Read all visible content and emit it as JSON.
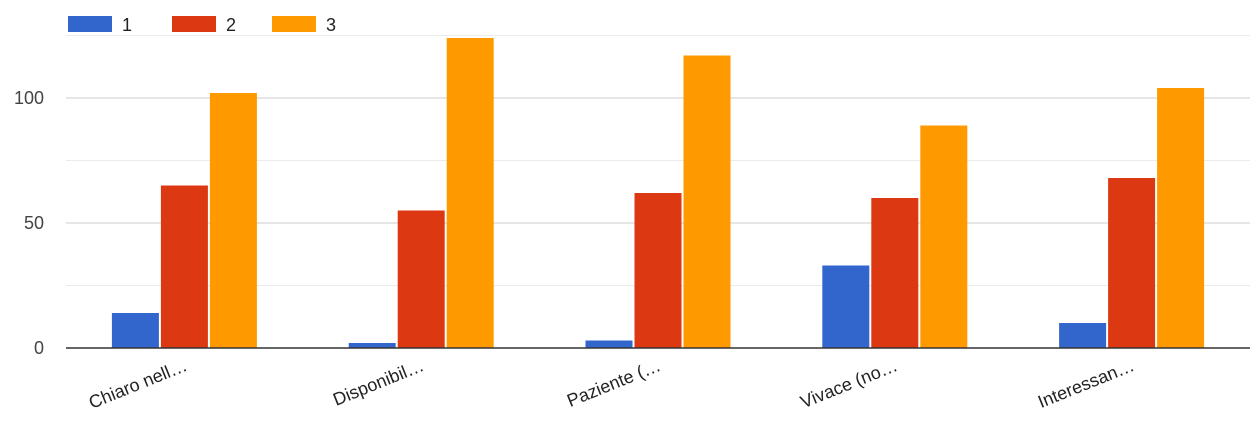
{
  "chart_data": {
    "type": "bar",
    "categories": [
      "Chiaro nell…",
      "Disponibil…",
      "Paziente (…",
      "Vivace (no…",
      "Interessan…"
    ],
    "series": [
      {
        "name": "1",
        "color": "#3366cc",
        "values": [
          14,
          2,
          3,
          33,
          10
        ]
      },
      {
        "name": "2",
        "color": "#dc3912",
        "values": [
          65,
          55,
          62,
          60,
          68
        ]
      },
      {
        "name": "3",
        "color": "#ff9900",
        "values": [
          102,
          124,
          117,
          89,
          104
        ]
      }
    ],
    "title": "",
    "xlabel": "",
    "ylabel": "",
    "ylim": [
      0,
      125
    ],
    "yticks": [
      0,
      50,
      100
    ],
    "grid": true,
    "legend_position": "top-left"
  }
}
